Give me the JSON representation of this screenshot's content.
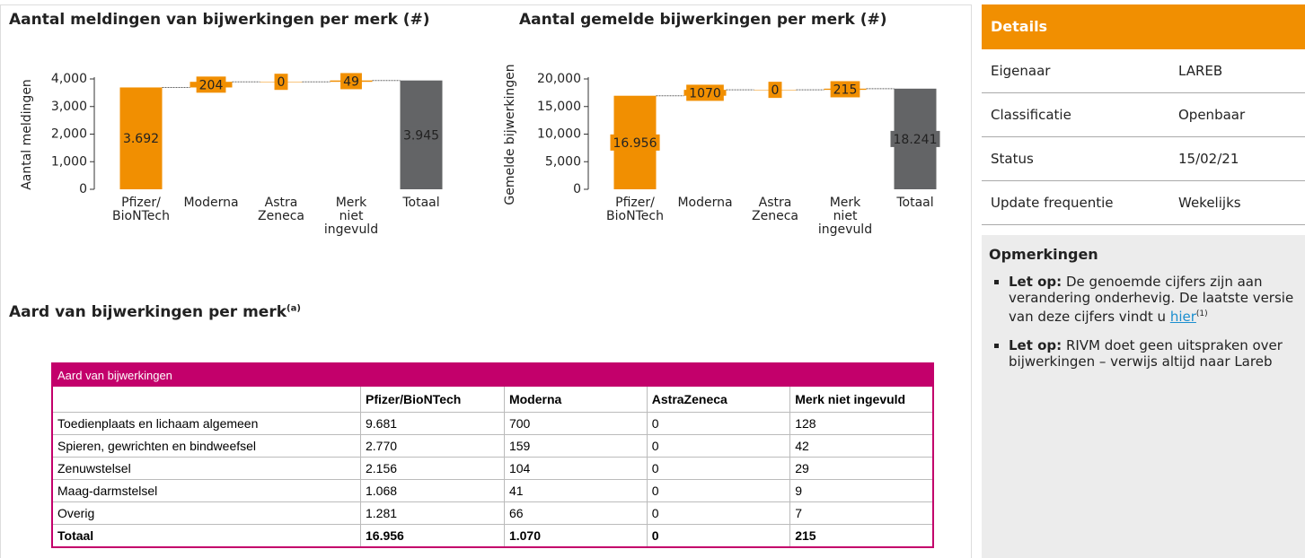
{
  "chart_data": [
    {
      "type": "waterfall",
      "title": "Aantal meldingen van bijwerkingen per merk (#)",
      "y_label": "Aantal meldingen",
      "categories": [
        "Pfizer/\nBioNTech",
        "Moderna",
        "Astra\nZeneca",
        "Merk\nniet\ningevuld",
        "Totaal"
      ],
      "values": [
        3692,
        204,
        0,
        49,
        3945
      ],
      "value_labels": [
        "3.692",
        "204",
        "0",
        "49",
        "3.945"
      ],
      "colors": [
        "#f18f01",
        "#f18f01",
        "#f18f01",
        "#f18f01",
        "#636466"
      ],
      "ylim": [
        0,
        4000
      ],
      "yticks": [
        0,
        {
          "value": 1000,
          "label": "1,000"
        },
        {
          "value": 2000,
          "label": "2,000"
        },
        {
          "value": 3000,
          "label": "3,000"
        },
        {
          "value": 4000,
          "label": "4,000"
        }
      ]
    },
    {
      "type": "waterfall",
      "title": "Aantal gemelde bijwerkingen per merk (#)",
      "y_label": "Gemelde bijwerkingen",
      "categories": [
        "Pfizer/\nBioNTech",
        "Moderna",
        "Astra\nZeneca",
        "Merk\nniet\ningevuld",
        "Totaal"
      ],
      "values": [
        16956,
        1070,
        0,
        215,
        18241
      ],
      "value_labels": [
        "16.956",
        "1070",
        "0",
        "215",
        "18.241"
      ],
      "colors": [
        "#f18f01",
        "#f18f01",
        "#f18f01",
        "#f18f01",
        "#636466"
      ],
      "ylim": [
        0,
        20000
      ],
      "yticks": [
        0,
        {
          "value": 5000,
          "label": "5,000"
        },
        {
          "value": 10000,
          "label": "10,000"
        },
        {
          "value": 15000,
          "label": "15,000"
        },
        {
          "value": 20000,
          "label": "20,000"
        }
      ]
    }
  ],
  "table": {
    "title": "Aard van bijwerkingen per merk",
    "title_note": "(a)",
    "caption": "Aard van bijwerkingen",
    "columns": [
      "Pfizer/BioNTech",
      "Moderna",
      "AstraZeneca",
      "Merk niet ingevuld"
    ],
    "rows": [
      [
        "Toedienplaats en lichaam algemeen",
        "9.681",
        "700",
        "0",
        "128"
      ],
      [
        "Spieren, gewrichten en bindweefsel",
        "2.770",
        "159",
        "0",
        "42"
      ],
      [
        "Zenuwstelsel",
        "2.156",
        "104",
        "0",
        "29"
      ],
      [
        "Maag-darmstelsel",
        "1.068",
        "41",
        "0",
        "9"
      ],
      [
        "Overig",
        "1.281",
        "66",
        "0",
        "7"
      ],
      [
        "Totaal",
        "16.956",
        "1.070",
        "0",
        "215"
      ]
    ]
  },
  "details": {
    "title": "Details",
    "rows": [
      [
        "Eigenaar",
        "LAREB"
      ],
      [
        "Classificatie",
        "Openbaar"
      ],
      [
        "Status",
        "15/02/21"
      ],
      [
        "Update frequentie",
        "Wekelijks"
      ]
    ]
  },
  "remarks": {
    "title": "Opmerkingen",
    "items": [
      {
        "label": "Let op:",
        "text": " De genoemde cijfers zijn aan verandering onderhevig. De laatste versie van deze cijfers vindt u ",
        "link": "hier",
        "note": "(1)"
      },
      {
        "label": "Let op:",
        "text": " RIVM doet geen uitspraken over bijwerkingen – verwijs altijd naar Lareb"
      }
    ]
  }
}
